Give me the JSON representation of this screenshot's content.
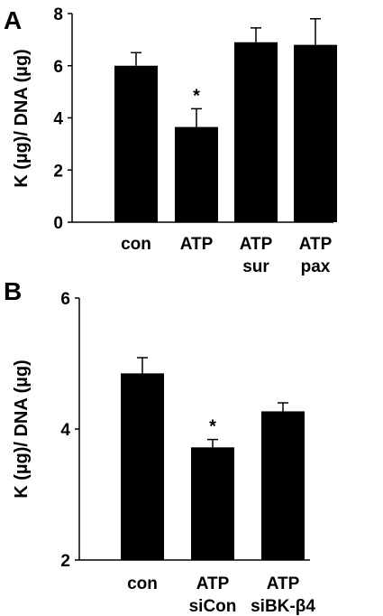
{
  "chart_data": [
    {
      "type": "bar",
      "panel": "A",
      "ylabel": "K (µg)/ DNA (µg)",
      "ylim": [
        0,
        8
      ],
      "yticks": [
        "0",
        "2",
        "4",
        "6",
        "8"
      ],
      "categories": [
        [
          "con"
        ],
        [
          "ATP"
        ],
        [
          "ATP",
          "sur"
        ],
        [
          "ATP",
          "pax"
        ]
      ],
      "values": [
        6.0,
        3.65,
        6.9,
        6.8
      ],
      "errors": [
        0.5,
        0.7,
        0.55,
        1.0
      ],
      "annotations": [
        "",
        "*",
        "",
        ""
      ],
      "bar_color": "#000000"
    },
    {
      "type": "bar",
      "panel": "B",
      "ylabel": "K (µg)/ DNA (µg)",
      "ylim": [
        2,
        6
      ],
      "yticks": [
        "2",
        "4",
        "6"
      ],
      "categories": [
        [
          "con"
        ],
        [
          "ATP",
          "siCon"
        ],
        [
          "ATP",
          "siBK-β4"
        ]
      ],
      "values": [
        4.85,
        3.72,
        4.27
      ],
      "errors": [
        0.24,
        0.12,
        0.13
      ],
      "annotations": [
        "",
        "*",
        ""
      ],
      "bar_color": "#000000"
    }
  ]
}
